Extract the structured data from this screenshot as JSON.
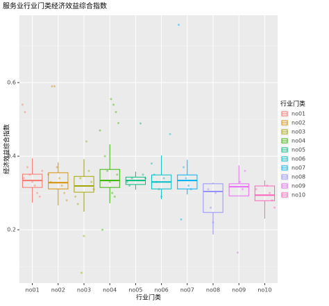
{
  "chart_data": {
    "type": "boxplot",
    "title": "服务业行业门类经济效益综合指数",
    "x_label": "行业门类",
    "y_label": "经济效益综合指数",
    "legend_title": "行业门类",
    "categories": [
      "no01",
      "no02",
      "no03",
      "no04",
      "no05",
      "no06",
      "no07",
      "no08",
      "no09",
      "no10"
    ],
    "colors": [
      "#F8766D",
      "#D89000",
      "#A3A500",
      "#39B600",
      "#00BF7D",
      "#00BFC4",
      "#00B0F6",
      "#9590FF",
      "#E76BF3",
      "#FF62BC"
    ],
    "min": [
      0.274,
      0.266,
      0.249,
      0.272,
      0.309,
      0.283,
      0.296,
      0.187,
      0.292,
      0.23
    ],
    "q1": [
      0.315,
      0.311,
      0.302,
      0.315,
      0.323,
      0.311,
      0.311,
      0.247,
      0.292,
      0.279
    ],
    "median": [
      0.334,
      0.328,
      0.319,
      0.334,
      0.334,
      0.33,
      0.334,
      0.304,
      0.317,
      0.294
    ],
    "q3": [
      0.351,
      0.355,
      0.345,
      0.364,
      0.343,
      0.349,
      0.349,
      0.325,
      0.325,
      0.319
    ],
    "max": [
      0.394,
      0.383,
      0.392,
      0.432,
      0.358,
      0.402,
      0.39,
      0.328,
      0.375,
      0.334
    ],
    "points": [
      [
        0.54,
        0.52,
        0.37,
        0.35,
        0.33,
        0.32,
        0.3,
        0.29,
        0.36,
        0.34
      ],
      [
        0.59,
        0.59,
        0.37,
        0.34,
        0.32,
        0.3,
        0.28,
        0.35,
        0.33
      ],
      [
        0.083,
        0.183,
        0.44,
        0.36,
        0.33,
        0.31,
        0.29,
        0.27,
        0.34
      ],
      [
        0.555,
        0.54,
        0.52,
        0.49,
        0.47,
        0.2,
        0.4,
        0.36,
        0.33,
        0.3,
        0.29,
        0.35
      ],
      [
        0.489,
        0.35,
        0.34,
        0.33,
        0.32,
        0.34
      ],
      [
        0.46,
        0.38,
        0.35,
        0.33,
        0.31,
        0.29,
        0.34
      ],
      [
        0.757,
        0.228,
        0.37,
        0.34,
        0.32,
        0.31
      ],
      [
        0.31,
        0.26,
        0.22,
        0.3
      ],
      [
        0.138,
        0.33,
        0.31,
        0.36
      ],
      [
        0.32,
        0.3,
        0.28,
        0.26,
        0.31
      ]
    ],
    "ylim": [
      0.055,
      0.783
    ],
    "yticks": [
      0.2,
      0.4,
      0.6
    ],
    "yminor": [
      0.1,
      0.3,
      0.5,
      0.7
    ],
    "grid": true
  }
}
